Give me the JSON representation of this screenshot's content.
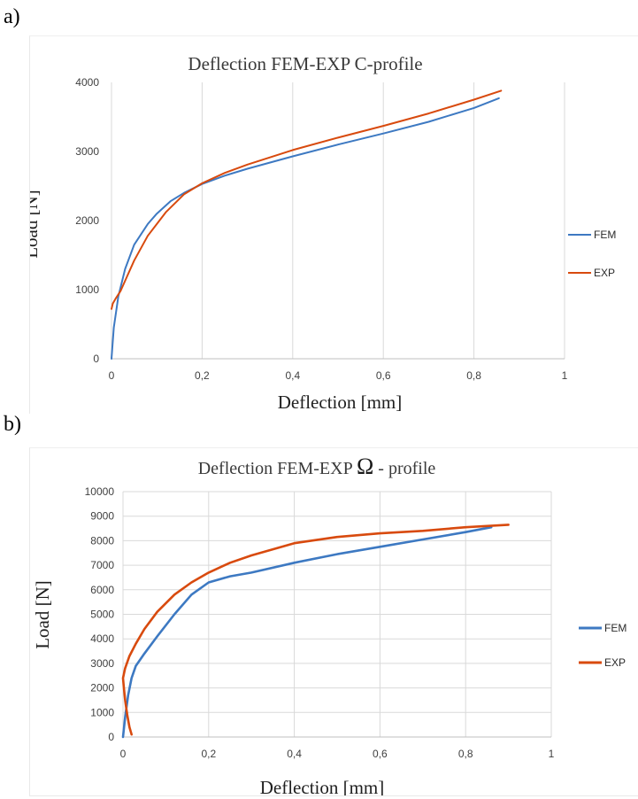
{
  "panels": [
    {
      "letter": "a)"
    },
    {
      "letter": "b)"
    }
  ],
  "chart_data": [
    {
      "type": "line",
      "title": "Deflection FEM-EXP C-profile",
      "xlabel": "Deflection [mm]",
      "ylabel": "Load [N]",
      "xlim": [
        0,
        1
      ],
      "ylim": [
        0,
        4000
      ],
      "xticks": [
        "0",
        "0,2",
        "0,4",
        "0,6",
        "0,8",
        "1"
      ],
      "yticks": [
        "0",
        "1000",
        "2000",
        "3000",
        "4000"
      ],
      "grid": "vertical",
      "legend_position": "right",
      "series": [
        {
          "name": "FEM",
          "color": "#3d79c2",
          "x": [
            0,
            0.005,
            0.015,
            0.03,
            0.05,
            0.08,
            0.1,
            0.13,
            0.16,
            0.2,
            0.25,
            0.3,
            0.4,
            0.5,
            0.6,
            0.7,
            0.8,
            0.855
          ],
          "y": [
            0,
            450,
            900,
            1300,
            1650,
            1950,
            2100,
            2280,
            2400,
            2530,
            2650,
            2750,
            2930,
            3100,
            3260,
            3430,
            3630,
            3770
          ]
        },
        {
          "name": "EXP",
          "color": "#d84a0e",
          "x": [
            0,
            0.003,
            0.01,
            0.02,
            0.035,
            0.05,
            0.08,
            0.12,
            0.16,
            0.2,
            0.25,
            0.3,
            0.4,
            0.5,
            0.6,
            0.7,
            0.8,
            0.86
          ],
          "y": [
            720,
            800,
            880,
            980,
            1200,
            1420,
            1780,
            2120,
            2380,
            2540,
            2690,
            2810,
            3020,
            3200,
            3370,
            3550,
            3750,
            3880
          ]
        }
      ]
    },
    {
      "type": "line",
      "title": "Deflection FEM-EXP",
      "title_symbol": "Ω",
      "title_suffix": "- profile",
      "xlabel": "Deflection [mm]",
      "ylabel": "Load [N]",
      "xlim": [
        0,
        1
      ],
      "ylim": [
        0,
        10000
      ],
      "xticks": [
        "0",
        "0,2",
        "0,4",
        "0,6",
        "0,8",
        "1"
      ],
      "yticks": [
        "0",
        "1000",
        "2000",
        "3000",
        "4000",
        "5000",
        "6000",
        "7000",
        "8000",
        "9000",
        "10000"
      ],
      "grid": "both",
      "legend_position": "right",
      "series": [
        {
          "name": "FEM",
          "color": "#3d79c2",
          "x": [
            0,
            0.005,
            0.012,
            0.02,
            0.03,
            0.05,
            0.08,
            0.12,
            0.16,
            0.2,
            0.25,
            0.3,
            0.4,
            0.5,
            0.6,
            0.7,
            0.8,
            0.86
          ],
          "y": [
            0,
            800,
            1700,
            2400,
            2900,
            3400,
            4100,
            5000,
            5800,
            6300,
            6550,
            6700,
            7100,
            7450,
            7750,
            8050,
            8350,
            8550
          ]
        },
        {
          "name": "EXP",
          "color": "#d84a0e",
          "x": [
            0.02,
            0.015,
            0.01,
            0.005,
            0.002,
            0,
            0.005,
            0.015,
            0.03,
            0.05,
            0.08,
            0.12,
            0.16,
            0.2,
            0.25,
            0.3,
            0.4,
            0.5,
            0.6,
            0.7,
            0.8,
            0.9
          ],
          "y": [
            100,
            400,
            900,
            1500,
            2000,
            2400,
            2800,
            3300,
            3800,
            4400,
            5100,
            5800,
            6300,
            6700,
            7100,
            7400,
            7900,
            8150,
            8300,
            8400,
            8550,
            8650
          ]
        }
      ]
    }
  ]
}
